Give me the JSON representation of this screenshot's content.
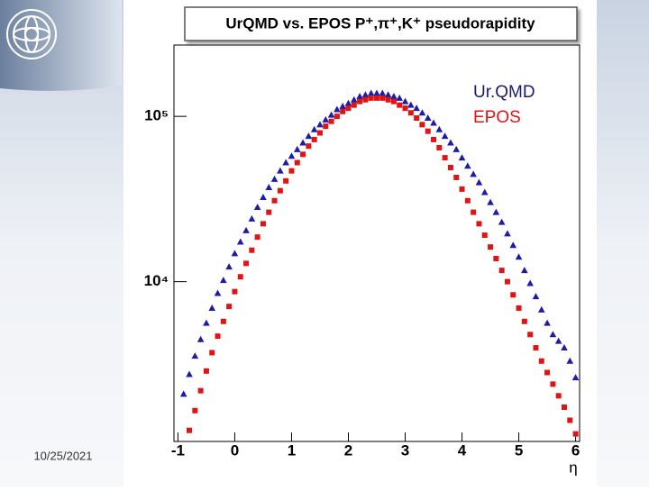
{
  "date": "10/25/2021",
  "chart_data": {
    "type": "scatter",
    "title": "UrQMD vs. EPOS P⁺,π⁺,K⁺ pseudorapidity",
    "x_label": "η",
    "log_y": true,
    "legend": "top-right",
    "xlim": [
      -1.07,
      6.07
    ],
    "ylim": [
      1080,
      270000
    ],
    "xticks": [
      -1,
      0,
      1,
      2,
      3,
      4,
      5,
      6
    ],
    "yticks": [
      {
        "value": 10000,
        "label": "10⁴"
      },
      {
        "value": 100000,
        "label": "10⁵"
      }
    ],
    "series": [
      {
        "name": "Ur.QMD",
        "color": "#1c1ca8",
        "label_color": "#1a1a6e",
        "marker": "triangle",
        "x": [
          -0.9,
          -0.8,
          -0.7,
          -0.6,
          -0.5,
          -0.4,
          -0.3,
          -0.2,
          -0.1,
          0,
          0.1,
          0.2,
          0.3,
          0.4,
          0.5,
          0.6,
          0.7,
          0.8,
          0.9,
          1,
          1.1,
          1.2,
          1.3,
          1.4,
          1.5,
          1.6,
          1.7,
          1.8,
          1.9,
          2,
          2.1,
          2.2,
          2.3,
          2.4,
          2.5,
          2.6,
          2.7,
          2.8,
          2.9,
          3,
          3.1,
          3.2,
          3.3,
          3.4,
          3.5,
          3.6,
          3.7,
          3.8,
          3.9,
          4,
          4.1,
          4.2,
          4.3,
          4.4,
          4.5,
          4.6,
          4.7,
          4.8,
          4.9,
          5,
          5.1,
          5.2,
          5.3,
          5.4,
          5.5,
          5.6,
          5.7,
          5.8,
          5.9,
          6
        ],
        "values": [
          2090,
          2750,
          3550,
          4470,
          5620,
          6920,
          8510,
          10200,
          12300,
          14800,
          17400,
          20400,
          24000,
          28200,
          32400,
          37200,
          41700,
          46800,
          52500,
          57500,
          63100,
          69200,
          75900,
          83200,
          89100,
          95500,
          102000,
          110000,
          115000,
          120000,
          126000,
          132000,
          135000,
          138000,
          138000,
          138000,
          135000,
          132000,
          129000,
          123000,
          117000,
          112000,
          105000,
          97700,
          91200,
          83200,
          75900,
          69200,
          63100,
          56200,
          50100,
          44700,
          39800,
          34700,
          30200,
          26300,
          22900,
          19500,
          16600,
          14100,
          11700,
          9770,
          8130,
          6760,
          5620,
          4790,
          4370,
          3980,
          3310,
          2630
        ]
      },
      {
        "name": "EPOS",
        "color": "#e01414",
        "label_color": "#e01414",
        "marker": "square",
        "x": [
          -0.8,
          -0.7,
          -0.6,
          -0.5,
          -0.4,
          -0.3,
          -0.2,
          -0.1,
          0,
          0.1,
          0.2,
          0.3,
          0.4,
          0.5,
          0.6,
          0.7,
          0.8,
          0.9,
          1,
          1.1,
          1.2,
          1.3,
          1.4,
          1.5,
          1.6,
          1.7,
          1.8,
          1.9,
          2,
          2.1,
          2.2,
          2.3,
          2.4,
          2.5,
          2.6,
          2.7,
          2.8,
          2.9,
          3,
          3.1,
          3.2,
          3.3,
          3.4,
          3.5,
          3.6,
          3.7,
          3.8,
          3.9,
          4,
          4.1,
          4.2,
          4.3,
          4.4,
          4.5,
          4.6,
          4.7,
          4.8,
          4.9,
          5,
          5.1,
          5.2,
          5.3,
          5.4,
          5.5,
          5.6,
          5.7,
          5.8,
          5.9,
          6
        ],
        "values": [
          1260,
          1660,
          2190,
          2880,
          3720,
          4680,
          5750,
          7080,
          8710,
          10700,
          12900,
          15500,
          18600,
          22400,
          26300,
          30900,
          35500,
          40700,
          46800,
          52500,
          58900,
          66100,
          72400,
          79400,
          87100,
          93300,
          100000,
          107000,
          112000,
          117000,
          123000,
          126000,
          129000,
          129000,
          129000,
          126000,
          123000,
          117000,
          112000,
          105000,
          97700,
          89100,
          81300,
          72400,
          64600,
          56200,
          49000,
          42700,
          36300,
          30900,
          26300,
          22400,
          19100,
          16200,
          13800,
          11700,
          10000,
          8320,
          6920,
          5750,
          4790,
          3980,
          3310,
          2820,
          2400,
          2040,
          1740,
          1450,
          1200
        ]
      }
    ]
  }
}
